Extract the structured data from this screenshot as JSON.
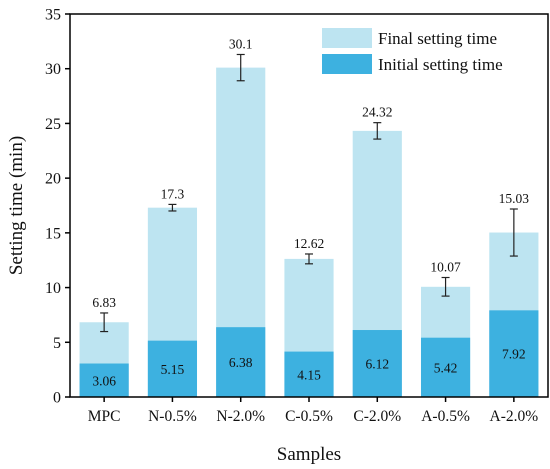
{
  "chart_data": {
    "type": "bar",
    "stacked_overlay": true,
    "xlabel": "Samples",
    "ylabel": "Setting time (min)",
    "ylim": [
      0,
      35
    ],
    "yticks": [
      0,
      5,
      10,
      15,
      20,
      25,
      30,
      35
    ],
    "grid": false,
    "legend_position": "top-right",
    "categories": [
      "MPC",
      "N-0.5%",
      "N-2.0%",
      "C-0.5%",
      "C-2.0%",
      "A-0.5%",
      "A-2.0%"
    ],
    "series": [
      {
        "name": "Final setting time",
        "color": "#bde4f1",
        "values": [
          6.83,
          17.3,
          30.1,
          12.62,
          24.32,
          10.07,
          15.03
        ],
        "value_labels": [
          "6.83",
          "17.3",
          "30.1",
          "12.62",
          "24.32",
          "10.07",
          "15.03"
        ],
        "error": [
          0.85,
          0.3,
          1.2,
          0.45,
          0.75,
          0.85,
          2.15
        ]
      },
      {
        "name": "Initial setting time",
        "color": "#3db1e0",
        "values": [
          3.06,
          5.15,
          6.38,
          4.15,
          6.12,
          5.42,
          7.92
        ],
        "value_labels": [
          "3.06",
          "5.15",
          "6.38",
          "4.15",
          "6.12",
          "5.42",
          "7.92"
        ]
      }
    ]
  }
}
